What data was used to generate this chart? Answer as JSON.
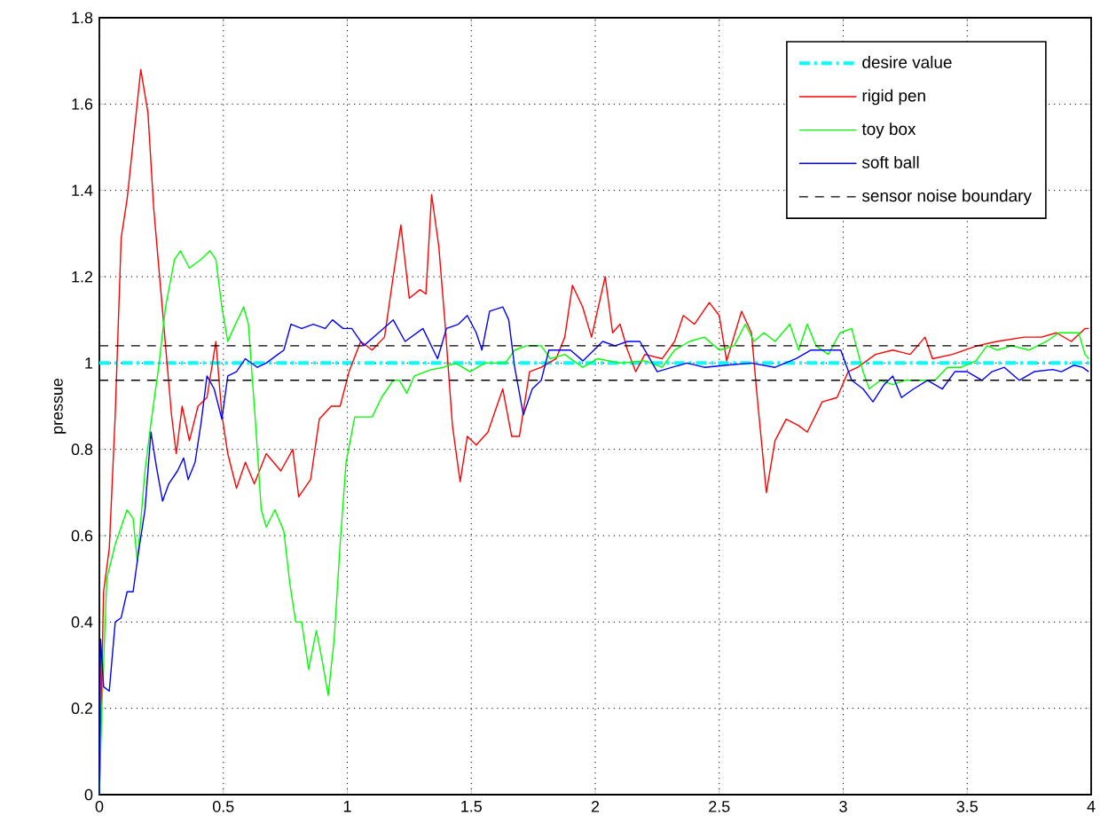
{
  "chart_data": {
    "type": "line",
    "ylabel": "pressue",
    "xlim": [
      0,
      4
    ],
    "ylim": [
      0,
      1.8
    ],
    "xticks": [
      0,
      0.5,
      1,
      1.5,
      2,
      2.5,
      3,
      3.5,
      4
    ],
    "yticks": [
      0,
      0.2,
      0.4,
      0.6,
      0.8,
      1,
      1.2,
      1.4,
      1.6,
      1.8
    ],
    "grid": true,
    "legend": "top right",
    "series": [
      {
        "name": "desire value",
        "color": "#00ffff",
        "line_style": "dashdot",
        "x": [
          0,
          4
        ],
        "values": [
          1,
          1
        ]
      },
      {
        "name": "rigid pen",
        "color": "#ff0000",
        "line_style": "solid",
        "x": [
          0,
          0.017,
          0.04,
          0.064,
          0.088,
          0.112,
          0.136,
          0.167,
          0.196,
          0.219,
          0.255,
          0.291,
          0.31,
          0.334,
          0.363,
          0.398,
          0.434,
          0.47,
          0.494,
          0.518,
          0.553,
          0.589,
          0.625,
          0.673,
          0.732,
          0.78,
          0.804,
          0.852,
          0.887,
          0.935,
          0.971,
          1.007,
          1.054,
          1.1,
          1.15,
          1.185,
          1.216,
          1.25,
          1.293,
          1.317,
          1.34,
          1.369,
          1.393,
          1.424,
          1.455,
          1.484,
          1.52,
          1.567,
          1.627,
          1.663,
          1.694,
          1.735,
          1.782,
          1.842,
          1.877,
          1.908,
          1.949,
          1.985,
          2.04,
          2.07,
          2.1,
          2.13,
          2.163,
          2.2,
          2.27,
          2.32,
          2.355,
          2.4,
          2.46,
          2.5,
          2.53,
          2.59,
          2.63,
          2.65,
          2.69,
          2.725,
          2.77,
          2.82,
          2.855,
          2.915,
          2.975,
          3.02,
          3.058,
          3.13,
          3.2,
          3.27,
          3.33,
          3.36,
          3.44,
          3.54,
          3.62,
          3.73,
          3.8,
          3.86,
          3.92,
          3.975,
          3.99
        ],
        "values": [
          0,
          0.47,
          0.57,
          0.88,
          1.29,
          1.38,
          1.51,
          1.68,
          1.58,
          1.36,
          1.12,
          0.88,
          0.79,
          0.9,
          0.82,
          0.9,
          0.92,
          1.05,
          0.88,
          0.79,
          0.71,
          0.77,
          0.72,
          0.79,
          0.75,
          0.8,
          0.69,
          0.73,
          0.87,
          0.9,
          0.9,
          0.98,
          1.05,
          1.03,
          1.06,
          1.2,
          1.32,
          1.15,
          1.17,
          1.16,
          1.39,
          1.27,
          1.1,
          0.855,
          0.725,
          0.83,
          0.81,
          0.84,
          0.94,
          0.83,
          0.83,
          0.98,
          0.99,
          1.01,
          1.06,
          1.18,
          1.13,
          1.06,
          1.2,
          1.07,
          1.09,
          1.03,
          0.98,
          1.02,
          1.01,
          1.05,
          1.11,
          1.09,
          1.14,
          1.11,
          1.005,
          1.12,
          1.07,
          0.94,
          0.7,
          0.82,
          0.87,
          0.855,
          0.84,
          0.91,
          0.92,
          0.98,
          0.99,
          1.02,
          1.03,
          1.02,
          1.06,
          1.01,
          1.02,
          1.04,
          1.05,
          1.06,
          1.06,
          1.07,
          1.05,
          1.08,
          1.08
        ]
      },
      {
        "name": "toy box",
        "color": "#00ff00",
        "line_style": "solid",
        "x": [
          0,
          0.01,
          0.03,
          0.064,
          0.112,
          0.136,
          0.153,
          0.184,
          0.208,
          0.239,
          0.267,
          0.303,
          0.327,
          0.363,
          0.41,
          0.446,
          0.47,
          0.494,
          0.518,
          0.541,
          0.582,
          0.601,
          0.63,
          0.653,
          0.673,
          0.708,
          0.744,
          0.768,
          0.792,
          0.816,
          0.844,
          0.875,
          0.899,
          0.923,
          0.947,
          0.971,
          0.995,
          1.03,
          1.1,
          1.138,
          1.185,
          1.21,
          1.24,
          1.27,
          1.34,
          1.388,
          1.436,
          1.495,
          1.555,
          1.637,
          1.675,
          1.722,
          1.782,
          1.818,
          1.877,
          1.949,
          2.01,
          2.1,
          2.2,
          2.27,
          2.32,
          2.38,
          2.44,
          2.5,
          2.56,
          2.605,
          2.64,
          2.68,
          2.725,
          2.785,
          2.82,
          2.855,
          2.89,
          2.94,
          2.987,
          3.034,
          3.08,
          3.105,
          3.15,
          3.2,
          3.25,
          3.3,
          3.37,
          3.42,
          3.475,
          3.535,
          3.58,
          3.62,
          3.68,
          3.75,
          3.82,
          3.87,
          3.92,
          3.95,
          3.975,
          3.99
        ],
        "values": [
          0,
          0.2,
          0.5,
          0.58,
          0.66,
          0.64,
          0.54,
          0.75,
          0.86,
          0.99,
          1.13,
          1.24,
          1.26,
          1.22,
          1.24,
          1.26,
          1.24,
          1.13,
          1.05,
          1.08,
          1.13,
          1.09,
          0.86,
          0.66,
          0.62,
          0.66,
          0.61,
          0.49,
          0.4,
          0.4,
          0.29,
          0.38,
          0.31,
          0.23,
          0.36,
          0.58,
          0.77,
          0.875,
          0.875,
          0.92,
          0.96,
          0.96,
          0.93,
          0.97,
          0.985,
          0.99,
          1,
          0.98,
          1,
          1,
          1.03,
          1.04,
          1.04,
          1.01,
          1.02,
          0.99,
          1.01,
          1,
          1.005,
          0.99,
          1.03,
          1.05,
          1.06,
          1.03,
          1.04,
          1.09,
          1.05,
          1.07,
          1.05,
          1.09,
          1.03,
          1.09,
          1.04,
          1.02,
          1.07,
          1.08,
          0.98,
          0.94,
          0.96,
          0.95,
          0.96,
          0.96,
          0.96,
          0.99,
          0.99,
          1.005,
          1.04,
          1.03,
          1.04,
          1.03,
          1.05,
          1.07,
          1.07,
          1.07,
          1.02,
          1.01
        ]
      },
      {
        "name": "soft ball",
        "color": "#0000ff",
        "line_style": "solid",
        "x": [
          0,
          0.005,
          0.017,
          0.04,
          0.064,
          0.088,
          0.112,
          0.136,
          0.16,
          0.184,
          0.208,
          0.23,
          0.255,
          0.28,
          0.315,
          0.34,
          0.358,
          0.386,
          0.41,
          0.434,
          0.463,
          0.494,
          0.518,
          0.553,
          0.589,
          0.637,
          0.673,
          0.72,
          0.744,
          0.773,
          0.816,
          0.863,
          0.911,
          0.94,
          0.983,
          1.018,
          1.066,
          1.126,
          1.185,
          1.233,
          1.305,
          1.364,
          1.4,
          1.448,
          1.484,
          1.52,
          1.543,
          1.574,
          1.627,
          1.651,
          1.675,
          1.71,
          1.746,
          1.782,
          1.813,
          1.853,
          1.9,
          1.95,
          2.03,
          2.08,
          2.13,
          2.18,
          2.21,
          2.25,
          2.31,
          2.37,
          2.44,
          2.53,
          2.63,
          2.725,
          2.81,
          2.87,
          2.93,
          2.99,
          3.034,
          3.08,
          3.12,
          3.165,
          3.2,
          3.235,
          3.284,
          3.34,
          3.4,
          3.45,
          3.5,
          3.56,
          3.6,
          3.65,
          3.71,
          3.77,
          3.845,
          3.88,
          3.93,
          3.965,
          3.99
        ],
        "values": [
          0,
          0.36,
          0.25,
          0.24,
          0.4,
          0.41,
          0.47,
          0.47,
          0.57,
          0.66,
          0.84,
          0.76,
          0.68,
          0.72,
          0.75,
          0.78,
          0.73,
          0.77,
          0.86,
          0.97,
          0.94,
          0.87,
          0.97,
          0.98,
          1.01,
          0.99,
          1,
          1.02,
          1.03,
          1.09,
          1.08,
          1.09,
          1.08,
          1.1,
          1.08,
          1.08,
          1.04,
          1.07,
          1.1,
          1.05,
          1.08,
          1.01,
          1.08,
          1.09,
          1.11,
          1.07,
          1.03,
          1.12,
          1.13,
          1.1,
          0.99,
          0.88,
          0.94,
          0.96,
          1.03,
          1.03,
          1.03,
          1.005,
          1.05,
          1.04,
          1.05,
          1.05,
          1.02,
          0.98,
          0.99,
          1,
          0.99,
          0.995,
          1,
          0.99,
          1.01,
          1.03,
          1.03,
          1.03,
          0.96,
          0.94,
          0.91,
          0.95,
          0.97,
          0.92,
          0.94,
          0.96,
          0.94,
          0.98,
          0.98,
          0.96,
          0.98,
          0.99,
          0.96,
          0.98,
          0.985,
          0.98,
          0.995,
          0.99,
          0.98
        ]
      },
      {
        "name": "sensor noise boundary",
        "color": "#000000",
        "line_style": "dashed",
        "x": [
          0,
          4
        ],
        "values": [
          1.04,
          1.04
        ]
      },
      {
        "color": "#000000",
        "line_style": "dashed",
        "x": [
          0,
          4
        ],
        "values": [
          0.96,
          0.96
        ]
      }
    ]
  }
}
